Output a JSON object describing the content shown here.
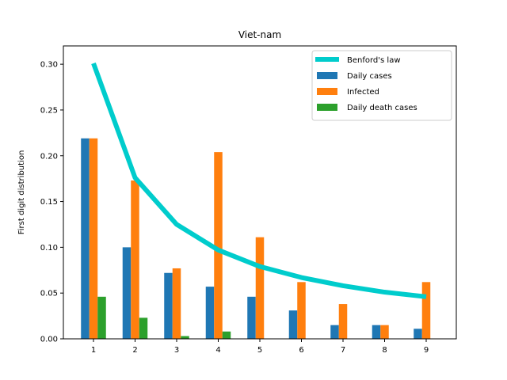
{
  "chart_data": {
    "type": "bar",
    "title": "Viet-nam",
    "xlabel": "",
    "ylabel": "First digit distribution",
    "categories": [
      "1",
      "2",
      "3",
      "4",
      "5",
      "6",
      "7",
      "8",
      "9"
    ],
    "ylim": [
      0,
      0.32
    ],
    "yticks": [
      "0.00",
      "0.05",
      "0.10",
      "0.15",
      "0.20",
      "0.25",
      "0.30"
    ],
    "line_series": {
      "name": "Benford's law",
      "color": "#00cccc",
      "values": [
        0.301,
        0.176,
        0.125,
        0.097,
        0.079,
        0.067,
        0.058,
        0.051,
        0.046
      ]
    },
    "series": [
      {
        "name": "Daily cases",
        "color": "#1f77b4",
        "values": [
          0.219,
          0.1,
          0.072,
          0.057,
          0.046,
          0.031,
          0.015,
          0.015,
          0.011
        ]
      },
      {
        "name": "Infected",
        "color": "#ff7f0e",
        "values": [
          0.219,
          0.173,
          0.077,
          0.204,
          0.111,
          0.062,
          0.038,
          0.015,
          0.062
        ]
      },
      {
        "name": "Daily death cases",
        "color": "#2ca02c",
        "values": [
          0.046,
          0.023,
          0.003,
          0.008,
          0,
          0,
          0,
          0,
          0
        ]
      }
    ],
    "legend": "top-right",
    "grid": false
  }
}
